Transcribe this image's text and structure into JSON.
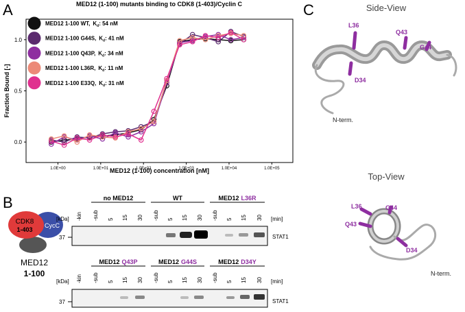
{
  "chart_data": {
    "type": "scatter",
    "title": "MED12 (1-100) mutants binding to CDK8 (1-403)/Cyclin C",
    "xlabel": "MED12 (1-100) concentration [nM]",
    "ylabel": "Fraction Bound [-]",
    "log_x": true,
    "x": [
      0.7,
      1.4,
      2.8,
      5.5,
      11,
      22,
      44,
      88,
      175,
      350,
      700,
      1400,
      2800,
      5600,
      11000,
      22000
    ],
    "xlim": [
      0.18,
      310000
    ],
    "ylim": [
      -0.2,
      1.2
    ],
    "xticks": [
      {
        "value": 1,
        "label": "1.0E+00"
      },
      {
        "value": 10,
        "label": "1.0E+01"
      },
      {
        "value": 100,
        "label": "1.0E+02"
      },
      {
        "value": 1000,
        "label": "1.0E+03"
      },
      {
        "value": 10000,
        "label": "1.0E+04"
      },
      {
        "value": 100000,
        "label": "1.0E+05"
      }
    ],
    "yticks": [
      {
        "value": 0,
        "label": "0.0"
      },
      {
        "value": 0.5,
        "label": "0.5"
      },
      {
        "value": 1,
        "label": "1.0"
      }
    ],
    "series": [
      {
        "name": "MED12 1-100 WT,",
        "kd_symbol": "K",
        "kd_sub": "d",
        "kd_text": ":  54 nM",
        "color": "#111111",
        "values": [
          0.0,
          0.02,
          0.03,
          0.05,
          0.06,
          0.07,
          0.09,
          0.12,
          0.22,
          0.55,
          0.98,
          1.0,
          1.01,
          1.0,
          0.99,
          1.0
        ]
      },
      {
        "name": "MED12 1-100 G44S,",
        "kd_symbol": "K",
        "kd_sub": "d",
        "kd_text": ": 41 nM",
        "color": "#5b2a6e",
        "values": [
          0.02,
          0.0,
          0.05,
          0.04,
          0.08,
          0.1,
          0.11,
          0.15,
          0.2,
          0.6,
          0.96,
          1.05,
          1.02,
          0.98,
          1.08,
          1.03
        ]
      },
      {
        "name": "MED12 1-100 Q43P,",
        "kd_symbol": "K",
        "kd_sub": "d",
        "kd_text": ": 34 nM",
        "color": "#8e2ea0",
        "values": [
          -0.02,
          0.05,
          0.02,
          0.06,
          0.03,
          0.09,
          0.05,
          0.1,
          0.18,
          0.58,
          0.97,
          0.99,
          1.03,
          1.05,
          1.0,
          1.02
        ]
      },
      {
        "name": "MED12 1-100 L36R,",
        "kd_symbol": "K",
        "kd_sub": "d",
        "kd_text": ": 11 nM",
        "color": "#ec8a78",
        "values": [
          0.03,
          0.06,
          0.0,
          0.07,
          0.05,
          0.04,
          0.1,
          0.13,
          0.2,
          0.6,
          0.99,
          1.02,
          1.0,
          1.04,
          1.06,
          1.04
        ]
      },
      {
        "name": "MED12 1-100 E33Q,",
        "kd_symbol": "K",
        "kd_sub": "d",
        "kd_text": ": 31 nM",
        "color": "#e0308f",
        "values": [
          0.01,
          -0.03,
          0.04,
          0.02,
          0.07,
          0.05,
          0.08,
          0.02,
          0.3,
          0.62,
          0.95,
          0.98,
          1.04,
          1.02,
          1.07,
          1.0
        ]
      }
    ]
  },
  "panel_labels": [
    "A",
    "B",
    "C"
  ],
  "panel_b": {
    "complex": {
      "cdk8": "CDK8",
      "cdk8_range": "1-403",
      "cycc": "CycC",
      "med12": "MED12",
      "med12_range": "1-100"
    },
    "kda": "[kDa]",
    "min": "[min]",
    "marker": "37",
    "protein": "STAT1",
    "lanes": [
      "-kin",
      "-sub",
      "5",
      "15",
      "30",
      "-sub",
      "5",
      "15",
      "30",
      "-sub",
      "5",
      "15",
      "30"
    ],
    "blot1_groups": [
      {
        "label": "no MED12"
      },
      {
        "label": "WT"
      },
      {
        "label": "MED12",
        "mutant": "L36R"
      }
    ],
    "blot2_groups": [
      {
        "label": "MED12",
        "mutant": "Q43P"
      },
      {
        "label": "MED12",
        "mutant": "G44S"
      },
      {
        "label": "MED12",
        "mutant": "D34Y"
      }
    ]
  },
  "panel_c": {
    "side_title": "Side-View",
    "top_title": "Top-View",
    "side_labels": [
      "L36",
      "Q43",
      "G44",
      "D34",
      "N-term."
    ],
    "top_labels": [
      "L36",
      "G44",
      "Q43",
      "D34",
      "N-term."
    ]
  }
}
